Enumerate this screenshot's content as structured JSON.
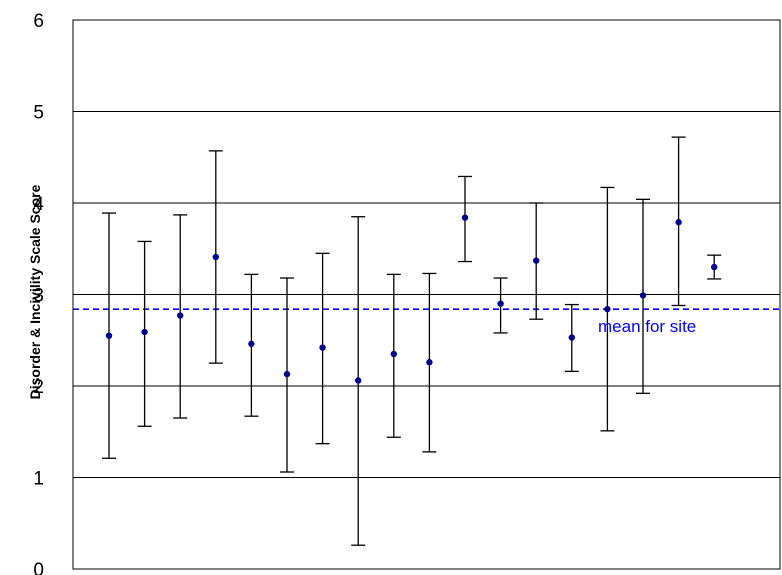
{
  "chart_data": {
    "type": "scatter",
    "title": "",
    "xlabel": "",
    "ylabel": "Disorder & Incivility Scale Score",
    "ylim": [
      0,
      6
    ],
    "yticks": [
      "0",
      "1",
      "2",
      "3",
      "4",
      "5",
      "6"
    ],
    "grid": true,
    "point_color": "#00008B",
    "mean_line_color": "#0000FF",
    "mean_line": {
      "value": 2.84,
      "label": "mean for site"
    },
    "points": [
      {
        "mean": 2.55,
        "lower": 1.21,
        "upper": 3.89
      },
      {
        "mean": 2.59,
        "lower": 1.56,
        "upper": 3.58
      },
      {
        "mean": 2.77,
        "lower": 1.65,
        "upper": 3.87
      },
      {
        "mean": 3.41,
        "lower": 2.25,
        "upper": 4.57
      },
      {
        "mean": 2.46,
        "lower": 1.67,
        "upper": 3.22
      },
      {
        "mean": 2.13,
        "lower": 1.06,
        "upper": 3.18
      },
      {
        "mean": 2.42,
        "lower": 1.37,
        "upper": 3.45
      },
      {
        "mean": 2.06,
        "lower": 0.26,
        "upper": 3.85
      },
      {
        "mean": 2.35,
        "lower": 1.44,
        "upper": 3.22
      },
      {
        "mean": 2.26,
        "lower": 1.28,
        "upper": 3.23
      },
      {
        "mean": 3.84,
        "lower": 3.36,
        "upper": 4.29
      },
      {
        "mean": 2.9,
        "lower": 2.58,
        "upper": 3.18
      },
      {
        "mean": 3.37,
        "lower": 2.73,
        "upper": 4.0
      },
      {
        "mean": 2.53,
        "lower": 2.16,
        "upper": 2.89
      },
      {
        "mean": 2.84,
        "lower": 1.51,
        "upper": 4.17
      },
      {
        "mean": 2.99,
        "lower": 1.92,
        "upper": 4.04
      },
      {
        "mean": 3.79,
        "lower": 2.88,
        "upper": 4.72
      },
      {
        "mean": 3.3,
        "lower": 3.17,
        "upper": 3.43
      }
    ]
  }
}
